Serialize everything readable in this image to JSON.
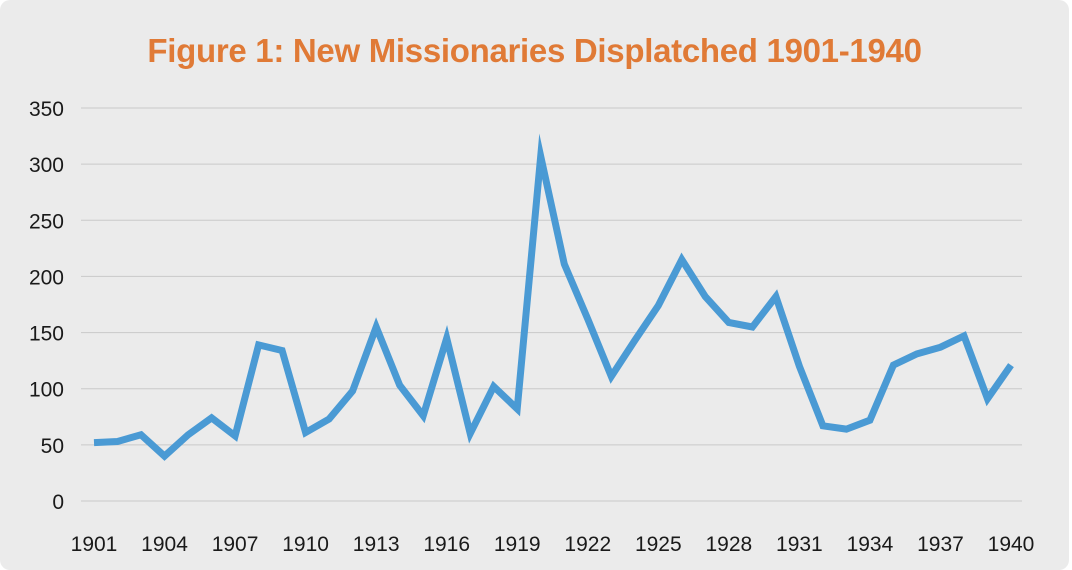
{
  "chart_data": {
    "type": "line",
    "title": "Figure 1: New Missionaries Displatched 1901-1940",
    "xlabel": "",
    "ylabel": "",
    "ylim": [
      0,
      350
    ],
    "yticks": [
      0,
      50,
      100,
      150,
      200,
      250,
      300,
      350
    ],
    "xticks": [
      1901,
      1904,
      1907,
      1910,
      1913,
      1916,
      1919,
      1922,
      1925,
      1928,
      1931,
      1934,
      1937,
      1940
    ],
    "grid": "horizontal",
    "legend": "none",
    "line_color": "#4a9ad4",
    "title_color": "#e07a36",
    "series": [
      {
        "x": [
          1901,
          1902,
          1903,
          1904,
          1905,
          1906,
          1907,
          1908,
          1909,
          1910,
          1911,
          1912,
          1913,
          1914,
          1915,
          1916,
          1917,
          1918,
          1919,
          1920,
          1921,
          1922,
          1923,
          1924,
          1925,
          1926,
          1927,
          1928,
          1929,
          1930,
          1931,
          1932,
          1933,
          1934,
          1935,
          1936,
          1937,
          1938,
          1939,
          1940
        ],
        "values": [
          52,
          53,
          59,
          40,
          59,
          74,
          58,
          139,
          134,
          61,
          73,
          98,
          155,
          103,
          76,
          145,
          60,
          102,
          82,
          307,
          211,
          162,
          111,
          143,
          174,
          215,
          182,
          159,
          155,
          182,
          120,
          67,
          64,
          72,
          121,
          131,
          137,
          147,
          91,
          121
        ]
      }
    ]
  }
}
